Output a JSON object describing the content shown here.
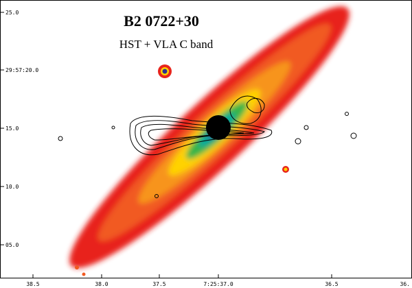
{
  "title": "B2 0722+30",
  "subtitle": "HST + VLA C band",
  "y_tick_labels": [
    "25.0",
    "29:57:20.0",
    "15.0",
    "10.0",
    "05.0"
  ],
  "x_tick_labels": [
    "38.5",
    "38.0",
    "37.5",
    "7:25:37.0",
    "36.5",
    "36."
  ]
}
